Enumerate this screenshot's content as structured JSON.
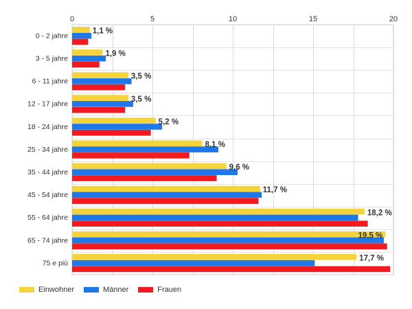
{
  "chart_data": {
    "type": "bar",
    "orientation": "horizontal",
    "categories": [
      "0 - 2 jahre",
      "3 - 5 jahre",
      "6 - 11 jahre",
      "12 - 17 jahre",
      "18 - 24 jahre",
      "25 - 34 jahre",
      "35 - 44 jahre",
      "45 - 54 jahre",
      "55 - 64 jahre",
      "65 - 74 jahre",
      "75 e più"
    ],
    "series": [
      {
        "name": "Einwohner",
        "color": "#f5d33a",
        "values": [
          1.1,
          1.9,
          3.5,
          3.5,
          5.2,
          8.1,
          9.6,
          11.7,
          18.2,
          19.5,
          17.7
        ]
      },
      {
        "name": "Männer",
        "color": "#1f77e8",
        "values": [
          1.2,
          2.1,
          3.7,
          3.8,
          5.6,
          9.1,
          10.3,
          11.8,
          17.8,
          19.4,
          15.1
        ]
      },
      {
        "name": "Frauen",
        "color": "#f2191f",
        "values": [
          1.0,
          1.7,
          3.3,
          3.3,
          4.9,
          7.3,
          9.0,
          11.6,
          18.4,
          19.6,
          19.8
        ]
      }
    ],
    "data_labels": [
      "1,1 %",
      "1,9 %",
      "3,5 %",
      "3,5 %",
      "5,2 %",
      "8,1 %",
      "9,6 %",
      "11,7 %",
      "18,2 %",
      "19,5 %",
      "17,7 %"
    ],
    "x_ticks": [
      "0",
      "5",
      "10",
      "15",
      "20"
    ],
    "xlim": [
      0,
      20
    ],
    "grid": true,
    "legend_position": "bottom-left",
    "title": "",
    "xlabel": "",
    "ylabel": ""
  }
}
